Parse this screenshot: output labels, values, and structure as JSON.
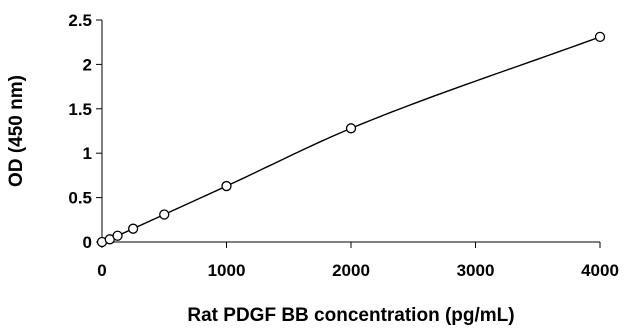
{
  "chart_data": {
    "type": "scatter",
    "title": "",
    "xlabel": "Rat PDGF BB concentration (pg/mL)",
    "ylabel": "OD (450 nm)",
    "xlim": [
      0,
      4000
    ],
    "ylim": [
      0,
      2.5
    ],
    "x_ticks": [
      "0",
      "1000",
      "2000",
      "3000",
      "4000"
    ],
    "y_ticks": [
      "0",
      "0.5",
      "1",
      "1.5",
      "2",
      "2.5"
    ],
    "grid": false,
    "legend": "none",
    "series": [
      {
        "points": [
          {
            "x": 0,
            "y": 0.0
          },
          {
            "x": 62.5,
            "y": 0.03
          },
          {
            "x": 125,
            "y": 0.07
          },
          {
            "x": 250,
            "y": 0.15
          },
          {
            "x": 500,
            "y": 0.31
          },
          {
            "x": 1000,
            "y": 0.63
          },
          {
            "x": 2000,
            "y": 1.28
          },
          {
            "x": 4000,
            "y": 2.31
          }
        ],
        "marker": "open-circle",
        "fit_line": "smooth",
        "color": "#000000"
      }
    ]
  }
}
